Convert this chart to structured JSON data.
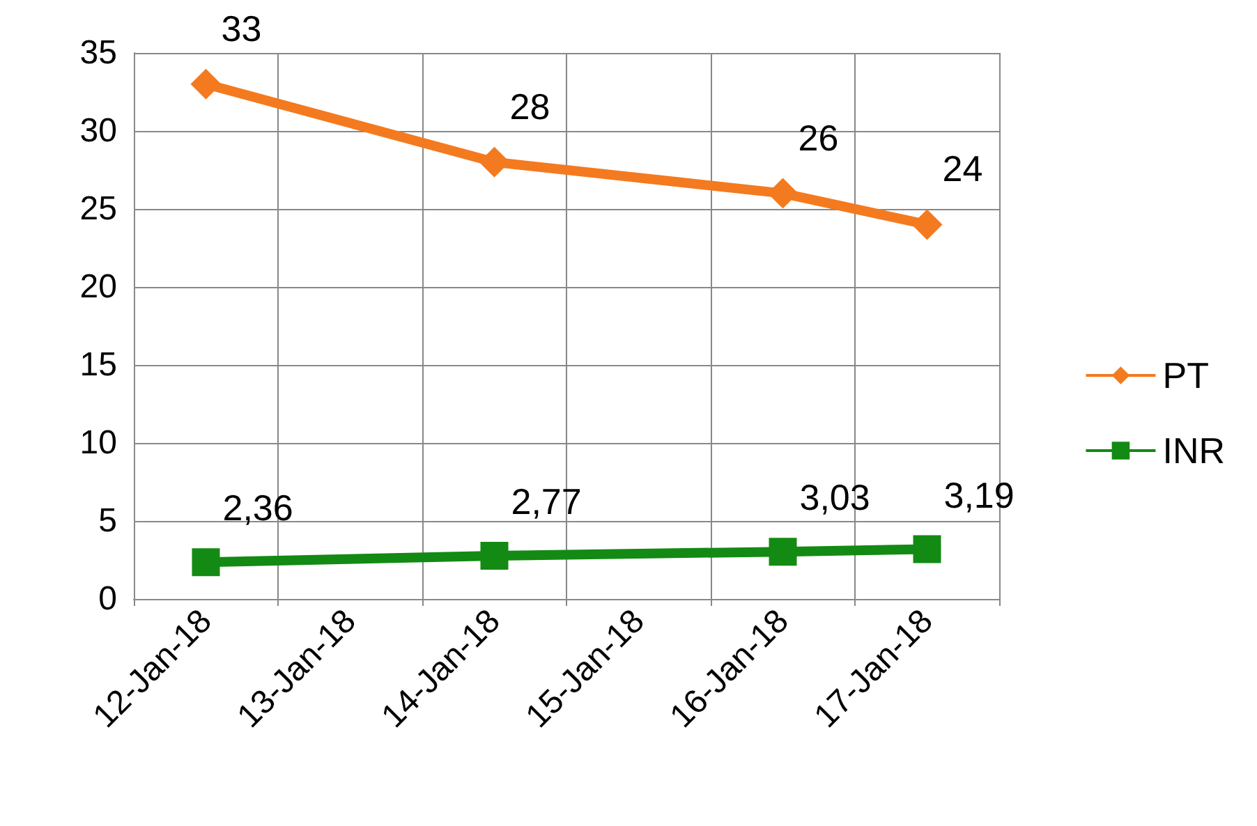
{
  "chart_data": {
    "type": "line",
    "categories": [
      "12-Jan-18",
      "13-Jan-18",
      "14-Jan-18",
      "15-Jan-18",
      "16-Jan-18",
      "17-Jan-18"
    ],
    "series": [
      {
        "name": "PT",
        "color": "#f47a1f",
        "marker": "diamond",
        "x": [
          "12-Jan-18",
          "14-Jan-18",
          "16-Jan-18",
          "17-Jan-18"
        ],
        "values": [
          33,
          28,
          26,
          24
        ],
        "value_labels": [
          "33",
          "28",
          "26",
          "24"
        ]
      },
      {
        "name": "INR",
        "color": "#138a13",
        "marker": "square",
        "x": [
          "12-Jan-18",
          "14-Jan-18",
          "16-Jan-18",
          "17-Jan-18"
        ],
        "values": [
          2.36,
          2.77,
          3.03,
          3.19
        ],
        "value_labels": [
          "2,36",
          "2,77",
          "3,03",
          "3,19"
        ]
      }
    ],
    "ylim": [
      0,
      35
    ],
    "yticks": [
      0,
      5,
      10,
      15,
      20,
      25,
      30,
      35
    ],
    "grid": true,
    "legend": "right"
  }
}
